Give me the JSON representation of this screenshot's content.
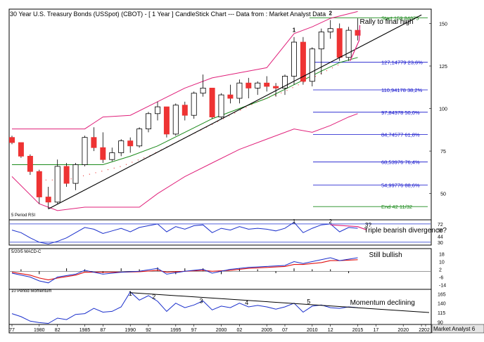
{
  "header": {
    "title": "30 Year U.S. Treasury Bonds (USSpot) (CBOT) - [ 1 Year ] CandleStick Chart --- Data from : Market Analyst Data"
  },
  "footer": {
    "brand": "Market Analyst 6"
  },
  "colors": {
    "bull_candle": "#ffffff",
    "bear_candle": "#ee3333",
    "trendline": "#000000",
    "bollinger": "#e0207a",
    "moving_average": "#1a8a1a",
    "fib_lines": "#1010cc",
    "start_line": "#1a8a1a",
    "rsi_line": "#1a2fcc",
    "macd_line": "#1a2fcc",
    "signal_line": "#e01010",
    "momentum_line": "#1a2fcc",
    "annotation_arrow": "#e0207a"
  },
  "chart_data": [
    {
      "type": "candlestick",
      "panel": "price",
      "x_ticks": [
        "77",
        "1980",
        "82",
        "1985",
        "87",
        "1990",
        "92",
        "1995",
        "97",
        "2000",
        "02",
        "2005",
        "07",
        "2010",
        "12",
        "2015",
        "17",
        "2020",
        "22",
        "202"
      ],
      "y_ticks": [
        50,
        75,
        100,
        125,
        150
      ],
      "ylim": [
        35,
        158
      ],
      "candles": [
        {
          "year": 1977,
          "open": 83,
          "high": 84,
          "low": 79,
          "close": 80
        },
        {
          "year": 1978,
          "open": 80,
          "high": 80,
          "low": 71,
          "close": 72
        },
        {
          "year": 1979,
          "open": 72,
          "high": 73,
          "low": 61,
          "close": 63
        },
        {
          "year": 1980,
          "open": 63,
          "high": 64,
          "low": 44,
          "close": 48
        },
        {
          "year": 1981,
          "open": 48,
          "high": 54,
          "low": 41,
          "close": 45
        },
        {
          "year": 1982,
          "open": 45,
          "high": 70,
          "low": 44,
          "close": 66
        },
        {
          "year": 1983,
          "open": 66,
          "high": 68,
          "low": 54,
          "close": 56
        },
        {
          "year": 1984,
          "open": 56,
          "high": 68,
          "low": 52,
          "close": 67
        },
        {
          "year": 1985,
          "open": 67,
          "high": 84,
          "low": 66,
          "close": 83
        },
        {
          "year": 1986,
          "open": 83,
          "high": 89,
          "low": 75,
          "close": 77
        },
        {
          "year": 1987,
          "open": 77,
          "high": 86,
          "low": 68,
          "close": 70
        },
        {
          "year": 1988,
          "open": 70,
          "high": 77,
          "low": 69,
          "close": 74
        },
        {
          "year": 1989,
          "open": 74,
          "high": 82,
          "low": 72,
          "close": 81
        },
        {
          "year": 1990,
          "open": 81,
          "high": 83,
          "low": 74,
          "close": 78
        },
        {
          "year": 1991,
          "open": 78,
          "high": 89,
          "low": 77,
          "close": 88
        },
        {
          "year": 1992,
          "open": 88,
          "high": 98,
          "low": 86,
          "close": 97
        },
        {
          "year": 1993,
          "open": 97,
          "high": 104,
          "low": 93,
          "close": 101
        },
        {
          "year": 1994,
          "open": 101,
          "high": 101,
          "low": 83,
          "close": 85
        },
        {
          "year": 1995,
          "open": 85,
          "high": 103,
          "low": 84,
          "close": 102
        },
        {
          "year": 1996,
          "open": 102,
          "high": 104,
          "low": 93,
          "close": 96
        },
        {
          "year": 1997,
          "open": 96,
          "high": 110,
          "low": 94,
          "close": 109
        },
        {
          "year": 1998,
          "open": 109,
          "high": 120,
          "low": 107,
          "close": 112
        },
        {
          "year": 1999,
          "open": 112,
          "high": 112,
          "low": 94,
          "close": 95
        },
        {
          "year": 2000,
          "open": 95,
          "high": 109,
          "low": 94,
          "close": 108
        },
        {
          "year": 2001,
          "open": 108,
          "high": 114,
          "low": 103,
          "close": 106
        },
        {
          "year": 2002,
          "open": 106,
          "high": 117,
          "low": 103,
          "close": 115
        },
        {
          "year": 2003,
          "open": 115,
          "high": 118,
          "low": 106,
          "close": 112
        },
        {
          "year": 2004,
          "open": 112,
          "high": 116,
          "low": 108,
          "close": 115
        },
        {
          "year": 2005,
          "open": 115,
          "high": 119,
          "low": 110,
          "close": 113
        },
        {
          "year": 2006,
          "open": 113,
          "high": 115,
          "low": 107,
          "close": 112
        },
        {
          "year": 2007,
          "open": 112,
          "high": 120,
          "low": 108,
          "close": 119
        },
        {
          "year": 2008,
          "open": 119,
          "high": 142,
          "low": 114,
          "close": 139
        },
        {
          "year": 2009,
          "open": 139,
          "high": 142,
          "low": 114,
          "close": 116
        },
        {
          "year": 2010,
          "open": 116,
          "high": 136,
          "low": 113,
          "close": 135
        },
        {
          "year": 2011,
          "open": 135,
          "high": 147,
          "low": 120,
          "close": 145
        },
        {
          "year": 2012,
          "open": 145,
          "high": 152,
          "low": 141,
          "close": 147
        },
        {
          "year": 2013,
          "open": 147,
          "high": 150,
          "low": 128,
          "close": 130
        },
        {
          "year": 2014,
          "open": 130,
          "high": 148,
          "low": 128,
          "close": 146
        },
        {
          "year": 2015,
          "open": 146,
          "high": 153,
          "low": 140,
          "close": 143
        }
      ],
      "trendline": {
        "from": {
          "year": 1981,
          "value": 41
        },
        "to": {
          "year": 2022,
          "value": 155
        }
      },
      "fib_levels": [
        {
          "label": "Start 153,34375",
          "value": 153.34
        },
        {
          "label": "127,14779 23,6%",
          "value": 127.15
        },
        {
          "label": "110,94178 38,2%",
          "value": 110.94
        },
        {
          "label": "97,84378 50,0%",
          "value": 97.84
        },
        {
          "label": "84,74577 61,8%",
          "value": 84.75
        },
        {
          "label": "68,53976 76,4%",
          "value": 68.54
        },
        {
          "label": "54,99776 88,6%",
          "value": 55.0
        },
        {
          "label": "End 42 11/32",
          "value": 42.34
        }
      ],
      "annotations": [
        {
          "label": "1",
          "year": 2008,
          "value": 145
        },
        {
          "label": "2",
          "year": 2012,
          "value": 155
        },
        {
          "label": "Rally to final high",
          "year": 2015,
          "value": 147
        }
      ]
    },
    {
      "type": "line",
      "panel": "rsi",
      "label": "5 Period RSI",
      "y_ticks": [
        72,
        58,
        44,
        30
      ],
      "ylim": [
        25,
        80
      ],
      "annotations": [
        {
          "label": "1",
          "year": 2008
        },
        {
          "label": "2",
          "year": 2012
        },
        {
          "label": "3?",
          "year": 2015
        },
        {
          "label": "Triple bearish divergence?",
          "year": 2016
        }
      ]
    },
    {
      "type": "line",
      "panel": "macd",
      "label": "5/20/5 MACD-C",
      "y_ticks": [
        18,
        10,
        2,
        -6,
        -14
      ],
      "ylim": [
        -18,
        22
      ],
      "annotations": [
        {
          "label": "Still bullish",
          "year": 2016
        }
      ]
    },
    {
      "type": "line",
      "panel": "momentum",
      "label": "10 Period Momentum",
      "y_ticks": [
        165,
        140,
        115,
        90
      ],
      "ylim": [
        85,
        175
      ],
      "annotations": [
        {
          "label": "1",
          "year": 1990
        },
        {
          "label": "2",
          "year": 1993
        },
        {
          "label": "3",
          "year": 1998
        },
        {
          "label": "4",
          "year": 2003
        },
        {
          "label": "5",
          "year": 2010
        },
        {
          "label": "Momentum declining",
          "year": 2014
        }
      ]
    }
  ]
}
